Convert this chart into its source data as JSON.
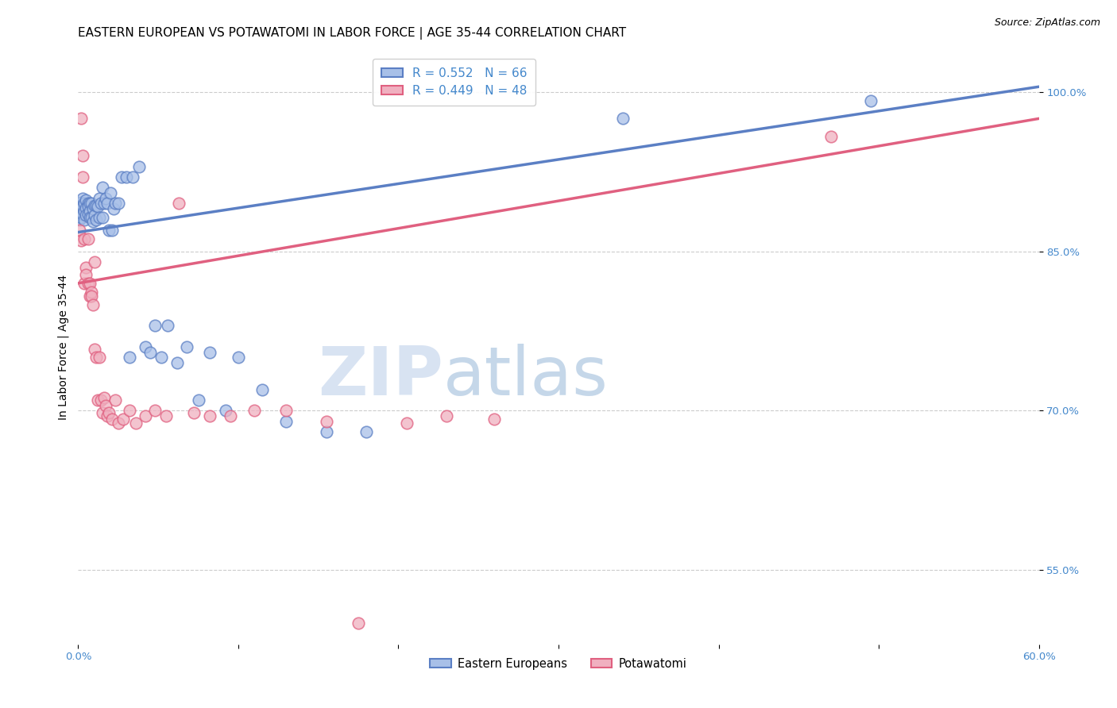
{
  "title": "EASTERN EUROPEAN VS POTAWATOMI IN LABOR FORCE | AGE 35-44 CORRELATION CHART",
  "source": "Source: ZipAtlas.com",
  "ylabel": "In Labor Force | Age 35-44",
  "xlim": [
    0.0,
    0.6
  ],
  "ylim": [
    0.48,
    1.04
  ],
  "xticks": [
    0.0,
    0.1,
    0.2,
    0.3,
    0.4,
    0.5,
    0.6
  ],
  "xticklabels": [
    "0.0%",
    "",
    "",
    "",
    "",
    "",
    "60.0%"
  ],
  "yticks": [
    0.55,
    0.7,
    0.85,
    1.0
  ],
  "yticklabels": [
    "55.0%",
    "70.0%",
    "85.0%",
    "100.0%"
  ],
  "watermark_zip": "ZIP",
  "watermark_atlas": "atlas",
  "legend_r_blue": "R = 0.552",
  "legend_n_blue": "N = 66",
  "legend_r_pink": "R = 0.449",
  "legend_n_pink": "N = 48",
  "legend_label_blue": "Eastern Europeans",
  "legend_label_pink": "Potawatomi",
  "blue_color": "#5b7fc4",
  "pink_color": "#e06080",
  "blue_face": "#a8c0e8",
  "pink_face": "#f0b0c0",
  "dot_size": 110,
  "blue_line_x0": 0.0,
  "blue_line_y0": 0.868,
  "blue_line_x1": 0.6,
  "blue_line_y1": 1.005,
  "pink_line_x0": 0.0,
  "pink_line_y0": 0.82,
  "pink_line_x1": 0.6,
  "pink_line_y1": 0.975,
  "blue_dots_x": [
    0.001,
    0.001,
    0.001,
    0.002,
    0.002,
    0.002,
    0.003,
    0.003,
    0.003,
    0.004,
    0.004,
    0.004,
    0.005,
    0.005,
    0.005,
    0.006,
    0.006,
    0.006,
    0.007,
    0.007,
    0.007,
    0.008,
    0.008,
    0.009,
    0.009,
    0.01,
    0.01,
    0.011,
    0.011,
    0.012,
    0.013,
    0.013,
    0.014,
    0.015,
    0.015,
    0.016,
    0.017,
    0.018,
    0.019,
    0.02,
    0.021,
    0.022,
    0.023,
    0.025,
    0.027,
    0.03,
    0.032,
    0.034,
    0.038,
    0.042,
    0.045,
    0.048,
    0.052,
    0.056,
    0.062,
    0.068,
    0.075,
    0.082,
    0.092,
    0.1,
    0.115,
    0.13,
    0.155,
    0.18,
    0.34,
    0.495
  ],
  "blue_dots_y": [
    0.895,
    0.888,
    0.88,
    0.896,
    0.89,
    0.882,
    0.9,
    0.892,
    0.885,
    0.895,
    0.888,
    0.88,
    0.898,
    0.891,
    0.884,
    0.895,
    0.892,
    0.885,
    0.895,
    0.888,
    0.882,
    0.895,
    0.882,
    0.89,
    0.878,
    0.893,
    0.884,
    0.893,
    0.88,
    0.892,
    0.9,
    0.882,
    0.895,
    0.91,
    0.882,
    0.895,
    0.9,
    0.895,
    0.87,
    0.905,
    0.87,
    0.89,
    0.895,
    0.895,
    0.92,
    0.92,
    0.75,
    0.92,
    0.93,
    0.76,
    0.755,
    0.78,
    0.75,
    0.78,
    0.745,
    0.76,
    0.71,
    0.755,
    0.7,
    0.75,
    0.72,
    0.69,
    0.68,
    0.68,
    0.975,
    0.992
  ],
  "pink_dots_x": [
    0.001,
    0.002,
    0.002,
    0.003,
    0.003,
    0.004,
    0.004,
    0.005,
    0.005,
    0.006,
    0.006,
    0.007,
    0.007,
    0.008,
    0.008,
    0.009,
    0.01,
    0.01,
    0.011,
    0.012,
    0.013,
    0.014,
    0.015,
    0.016,
    0.017,
    0.018,
    0.019,
    0.021,
    0.023,
    0.025,
    0.028,
    0.032,
    0.036,
    0.042,
    0.048,
    0.055,
    0.063,
    0.072,
    0.082,
    0.095,
    0.11,
    0.13,
    0.155,
    0.175,
    0.205,
    0.23,
    0.26,
    0.47
  ],
  "pink_dots_y": [
    0.87,
    0.975,
    0.86,
    0.92,
    0.94,
    0.82,
    0.862,
    0.835,
    0.828,
    0.862,
    0.82,
    0.808,
    0.82,
    0.812,
    0.808,
    0.8,
    0.758,
    0.84,
    0.75,
    0.71,
    0.75,
    0.71,
    0.698,
    0.712,
    0.705,
    0.695,
    0.698,
    0.692,
    0.71,
    0.688,
    0.692,
    0.7,
    0.688,
    0.695,
    0.7,
    0.695,
    0.895,
    0.698,
    0.695,
    0.695,
    0.7,
    0.7,
    0.69,
    0.5,
    0.688,
    0.695,
    0.692,
    0.958
  ],
  "grid_color": "#cccccc",
  "background_color": "#ffffff",
  "title_fontsize": 11,
  "axis_label_fontsize": 10,
  "tick_fontsize": 9.5,
  "tick_color": "#4488cc"
}
